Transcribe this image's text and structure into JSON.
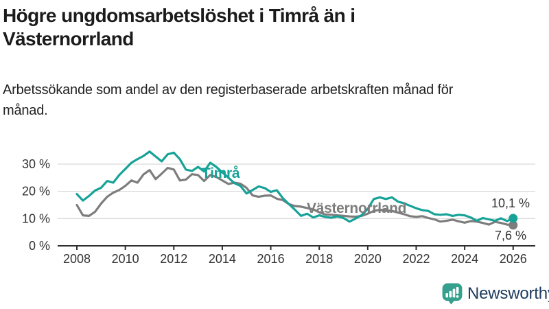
{
  "header": {
    "title": "Högre ungdomsarbetslöshet i Timrå än i Västernorrland",
    "subtitle": "Arbetssökande som andel av den registerbaserade arbetskraften månad för månad."
  },
  "chart_data": {
    "type": "line",
    "title": "Högre ungdomsarbetslöshet i Timrå än i Västernorrland",
    "xlabel": "",
    "ylabel": "",
    "unit": "%",
    "grid": "horizontal",
    "legend_position": "inline-labels",
    "xlim": [
      2007.2,
      2026.9
    ],
    "ylim": [
      0,
      37
    ],
    "x_ticks": [
      2008,
      2010,
      2012,
      2014,
      2016,
      2018,
      2020,
      2022,
      2024,
      2026
    ],
    "y_ticks": [
      {
        "value": 0,
        "label": "0 %"
      },
      {
        "value": 10,
        "label": "10 %"
      },
      {
        "value": 20,
        "label": "20 %"
      },
      {
        "value": 30,
        "label": "30 %"
      }
    ],
    "colors": {
      "grid": "#dadada",
      "axis": "#2e2e2e",
      "tick_text": "#333333"
    },
    "x": [
      2008,
      2008.25,
      2008.5,
      2008.75,
      2009,
      2009.25,
      2009.5,
      2009.75,
      2010,
      2010.25,
      2010.5,
      2010.75,
      2011,
      2011.25,
      2011.5,
      2011.75,
      2012,
      2012.25,
      2012.5,
      2012.75,
      2013,
      2013.25,
      2013.5,
      2013.75,
      2014,
      2014.25,
      2014.5,
      2014.75,
      2015,
      2015.25,
      2015.5,
      2015.75,
      2016,
      2016.25,
      2016.5,
      2016.75,
      2017,
      2017.25,
      2017.5,
      2017.75,
      2018,
      2018.25,
      2018.5,
      2018.75,
      2019,
      2019.25,
      2019.5,
      2019.75,
      2020,
      2020.25,
      2020.5,
      2020.75,
      2021,
      2021.25,
      2021.5,
      2021.75,
      2022,
      2022.25,
      2022.5,
      2022.75,
      2023,
      2023.25,
      2023.5,
      2023.75,
      2024,
      2024.25,
      2024.5,
      2024.75,
      2025,
      2025.25,
      2025.5,
      2025.75,
      2026
    ],
    "series": [
      {
        "name": "Timrå",
        "color": "#17a298",
        "end_label": "10,1 %",
        "last_value": 10.1,
        "values": [
          19.0,
          16.6,
          18.3,
          20.3,
          21.3,
          23.8,
          23.2,
          26.0,
          28.2,
          30.5,
          31.8,
          33.0,
          34.6,
          32.8,
          31.0,
          33.6,
          34.2,
          31.8,
          28.0,
          27.5,
          29.0,
          27.3,
          30.5,
          29.0,
          27.0,
          25.0,
          23.0,
          22.0,
          19.2,
          20.5,
          21.8,
          21.2,
          19.8,
          20.4,
          17.5,
          15.3,
          13.2,
          11.0,
          11.8,
          10.4,
          11.2,
          10.6,
          10.3,
          10.8,
          10.2,
          8.9,
          10.0,
          11.3,
          13.5,
          17.2,
          17.8,
          17.2,
          17.8,
          16.2,
          15.6,
          14.7,
          13.8,
          13.1,
          12.8,
          11.6,
          11.4,
          11.6,
          11.0,
          11.4,
          11.2,
          10.4,
          9.2,
          10.2,
          9.7,
          9.2,
          10.1,
          9.1,
          10.1
        ]
      },
      {
        "name": "Västernorrland",
        "color": "#7d7d7d",
        "end_label": "7,6 %",
        "last_value": 7.6,
        "values": [
          15.0,
          11.2,
          11.0,
          12.5,
          15.5,
          18.0,
          19.5,
          20.5,
          22.0,
          24.0,
          23.2,
          26.2,
          27.8,
          24.5,
          26.5,
          28.6,
          28.0,
          24.0,
          24.3,
          26.3,
          26.0,
          23.8,
          26.0,
          25.3,
          24.0,
          22.7,
          23.2,
          22.8,
          21.3,
          18.5,
          18.0,
          18.4,
          18.5,
          17.3,
          16.8,
          15.3,
          14.6,
          14.4,
          13.9,
          13.4,
          12.3,
          11.5,
          11.4,
          11.2,
          11.0,
          10.8,
          10.7,
          11.0,
          11.8,
          12.8,
          13.2,
          13.0,
          12.8,
          12.2,
          11.6,
          10.9,
          10.6,
          10.9,
          10.2,
          9.7,
          8.9,
          9.2,
          9.6,
          9.0,
          8.5,
          9.1,
          8.9,
          8.4,
          7.8,
          8.8,
          8.4,
          7.8,
          7.6
        ]
      }
    ]
  },
  "footer": {
    "brand": "Newsworthy",
    "brand_color": "#1d3a5e",
    "icon": "newsworthy-bar-chart-bubble",
    "icon_color": "#35a08e"
  }
}
